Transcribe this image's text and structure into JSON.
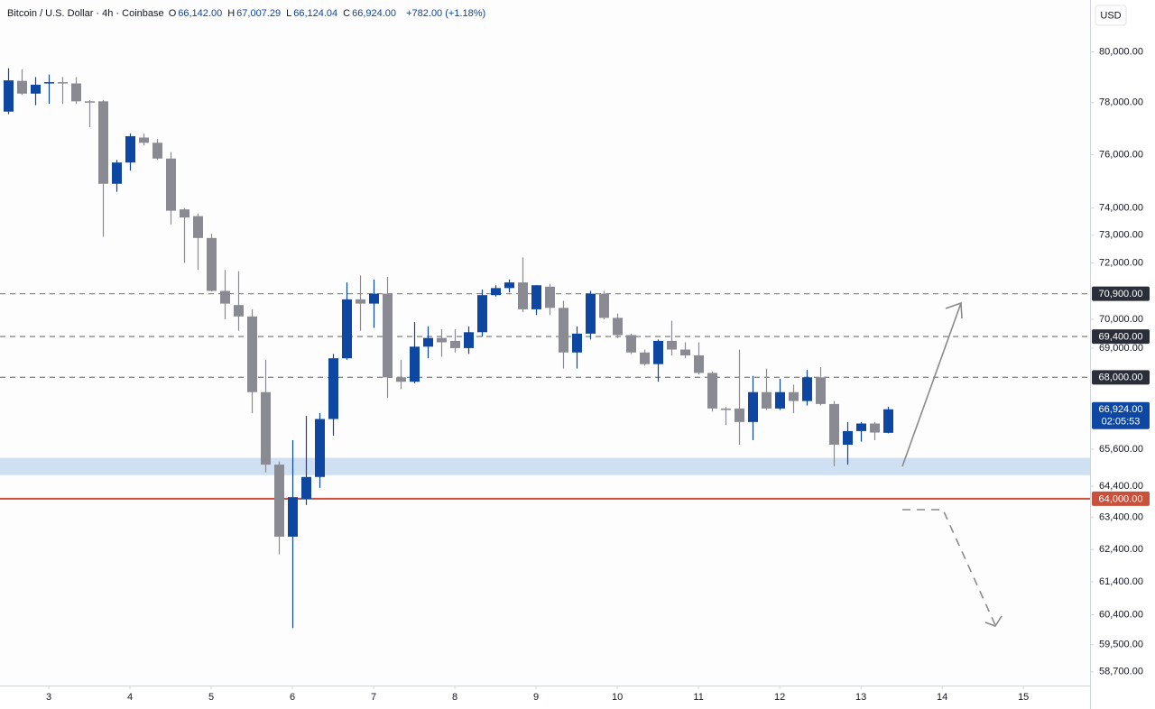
{
  "chart_data": {
    "type": "candlestick",
    "title": "Bitcoin / U.S. Dollar · 4h · Coinbase",
    "ohlc": [
      {
        "prefix": "O",
        "text": "66,142.00"
      },
      {
        "prefix": "H",
        "text": "67,007.29"
      },
      {
        "prefix": "L",
        "text": "66,124.04"
      },
      {
        "prefix": "C",
        "text": "66,924.00"
      }
    ],
    "change": "+782.00 (+1.18%)",
    "currency": "USD",
    "log_scale": true,
    "up_color": "#0d47a1",
    "down_color": "#8a8a92",
    "candles": {
      "x": [
        2.5,
        2.67,
        2.83,
        3,
        3.17,
        3.33,
        3.5,
        3.67,
        3.83,
        4,
        4.17,
        4.33,
        4.5,
        4.67,
        4.83,
        5,
        5.17,
        5.33,
        5.5,
        5.67,
        5.83,
        6,
        6.17,
        6.33,
        6.5,
        6.67,
        6.83,
        7,
        7.17,
        7.33,
        7.5,
        7.67,
        7.83,
        8,
        8.17,
        8.33,
        8.5,
        8.67,
        8.83,
        9,
        9.17,
        9.33,
        9.5,
        9.67,
        9.83,
        10,
        10.17,
        10.33,
        10.5,
        10.67,
        10.83,
        11,
        11.17,
        11.33,
        11.5,
        11.67,
        11.83,
        12,
        12.17,
        12.33,
        12.5,
        12.67,
        12.83,
        13,
        13.17,
        13.33
      ],
      "open": [
        77650,
        78850,
        78350,
        78750,
        78800,
        78750,
        78050,
        78050,
        74900,
        75700,
        76650,
        76450,
        75850,
        73950,
        73700,
        72900,
        71000,
        70500,
        70100,
        67500,
        65100,
        62800,
        64000,
        64700,
        66600,
        68650,
        70700,
        70550,
        70900,
        68000,
        67850,
        69050,
        69350,
        69250,
        69000,
        69550,
        70850,
        71100,
        71300,
        70350,
        71150,
        70400,
        68850,
        69500,
        70900,
        70050,
        69450,
        68850,
        68450,
        69250,
        68950,
        68750,
        68150,
        66950,
        66950,
        66500,
        67500,
        66950,
        67500,
        67200,
        68000,
        67100,
        65750,
        66200,
        66450,
        66142
      ],
      "high": [
        79350,
        79300,
        79000,
        79100,
        79000,
        79000,
        78100,
        78100,
        75800,
        76800,
        76800,
        76600,
        76100,
        74000,
        73800,
        73050,
        71750,
        71700,
        70350,
        68600,
        65200,
        65900,
        66700,
        66800,
        68800,
        71300,
        71550,
        71400,
        71500,
        68600,
        69900,
        69750,
        69650,
        69650,
        69750,
        71050,
        71200,
        71400,
        72200,
        71200,
        71250,
        70650,
        69750,
        71000,
        71000,
        70200,
        69500,
        68950,
        69300,
        69950,
        69200,
        69200,
        68200,
        67000,
        68950,
        68050,
        68300,
        67950,
        67750,
        68250,
        68350,
        67200,
        66500,
        66500,
        66500,
        67007.29
      ],
      "low": [
        77550,
        78300,
        77900,
        77950,
        77950,
        77950,
        77050,
        72950,
        74600,
        75400,
        76350,
        75800,
        73400,
        72000,
        71750,
        70980,
        70000,
        69600,
        66800,
        64850,
        62250,
        60000,
        63800,
        64350,
        66050,
        68600,
        69600,
        69700,
        67300,
        67600,
        67800,
        68650,
        68700,
        68850,
        68800,
        69400,
        70800,
        70950,
        70250,
        70150,
        70150,
        68300,
        68300,
        69300,
        70000,
        69350,
        68800,
        68400,
        67850,
        68750,
        68650,
        68100,
        66850,
        66400,
        65750,
        65900,
        66900,
        66900,
        66800,
        67050,
        67050,
        65050,
        65100,
        65850,
        65900,
        66124.04
      ],
      "close": [
        78870,
        78350,
        78700,
        78800,
        78750,
        78050,
        78000,
        74900,
        75700,
        76700,
        76450,
        75850,
        73900,
        73650,
        72900,
        71000,
        70550,
        70100,
        67500,
        65100,
        62800,
        64050,
        64700,
        66600,
        68650,
        70700,
        70550,
        70900,
        68000,
        67850,
        69050,
        69350,
        69200,
        69000,
        69550,
        70850,
        71100,
        71300,
        70350,
        71200,
        70400,
        68850,
        69500,
        70900,
        70050,
        69450,
        68850,
        68450,
        69250,
        68950,
        68750,
        68150,
        66950,
        66900,
        66500,
        67500,
        66950,
        67500,
        67200,
        68000,
        67100,
        65750,
        66200,
        66450,
        66150,
        66924
      ]
    },
    "xlim": [
      2.4,
      15.82
    ],
    "xticks": [
      3,
      4,
      5,
      6,
      7,
      8,
      9,
      10,
      11,
      12,
      13,
      14,
      15
    ],
    "ylim": [
      58300,
      82100
    ],
    "yticks": [
      {
        "value": 80000,
        "label": "80,000.00"
      },
      {
        "value": 78000,
        "label": "78,000.00"
      },
      {
        "value": 76000,
        "label": "76,000.00"
      },
      {
        "value": 74000,
        "label": "74,000.00"
      },
      {
        "value": 73000,
        "label": "73,000.00"
      },
      {
        "value": 72000,
        "label": "72,000.00"
      },
      {
        "value": 70000,
        "label": "70,000.00"
      },
      {
        "value": 69000,
        "label": "69,000.00"
      },
      {
        "value": 65600,
        "label": "65,600.00"
      },
      {
        "value": 64400,
        "label": "64,400.00"
      },
      {
        "value": 63400,
        "label": "63,400.00"
      },
      {
        "value": 62400,
        "label": "62,400.00"
      },
      {
        "value": 61400,
        "label": "61,400.00"
      },
      {
        "value": 60400,
        "label": "60,400.00"
      },
      {
        "value": 59500,
        "label": "59,500.00"
      },
      {
        "value": 58700,
        "label": "58,700.00"
      }
    ],
    "zone": {
      "from": 64760,
      "to": 65320,
      "color": "#cfe0f3"
    },
    "levels": [
      {
        "value": 70900,
        "label": "70,900.00",
        "style": "dashed",
        "color": "#8a8a8a",
        "label_color": "#2a2e39"
      },
      {
        "value": 69400,
        "label": "69,400.00",
        "style": "dashed",
        "color": "#8a8a8a",
        "label_color": "#2a2e39"
      },
      {
        "value": 68000,
        "label": "68,000.00",
        "style": "dashed",
        "color": "#8a8a8a",
        "label_color": "#2a2e39"
      },
      {
        "value": 64000,
        "label": "64,000.00",
        "style": "solid",
        "color": "#c9503a",
        "label_color": "#c9503a"
      }
    ],
    "last_price": {
      "label": "66,924.00",
      "countdown": "02:05:53",
      "color": "#0d47a1"
    }
  }
}
